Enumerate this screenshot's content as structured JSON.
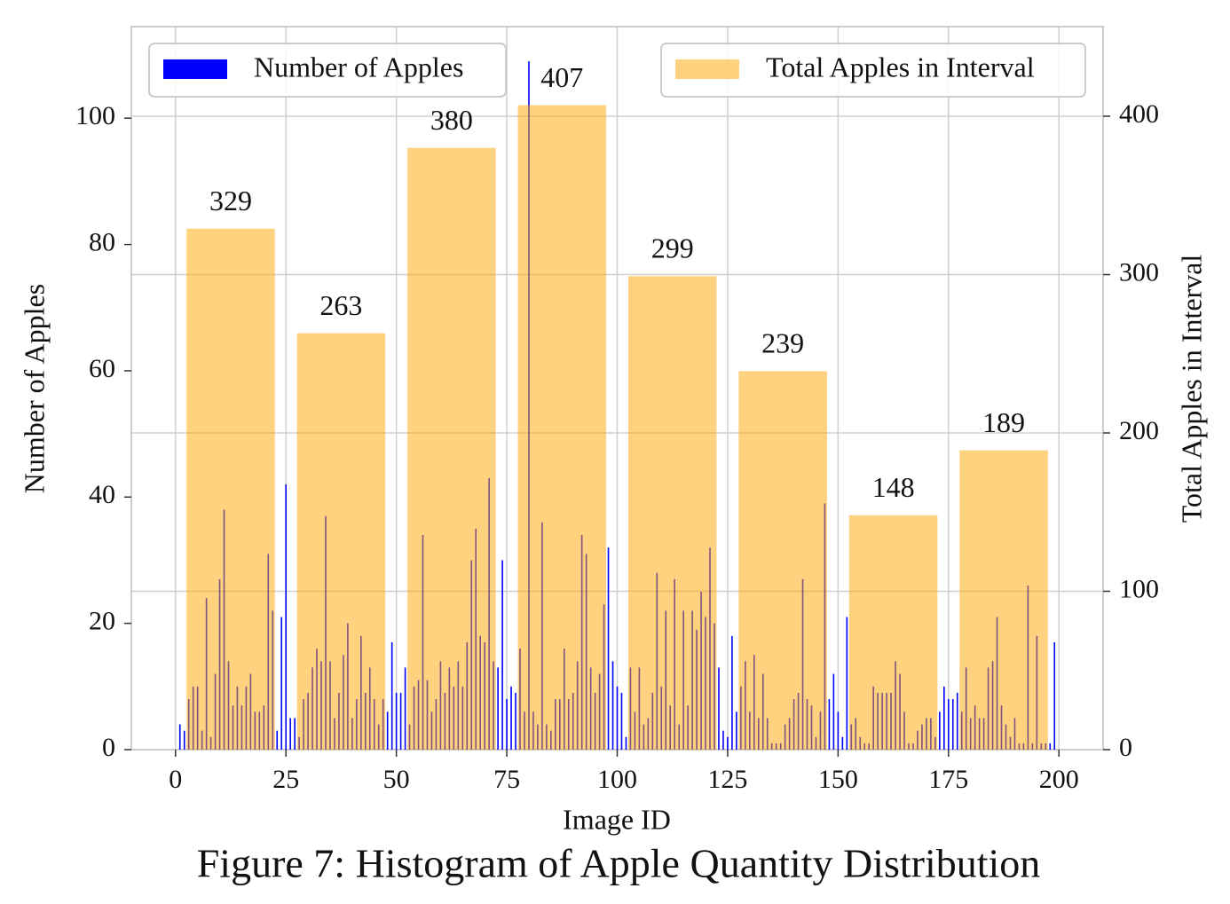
{
  "chart_data": {
    "type": "bar",
    "xlabel": "Image ID",
    "ylabel": "Number of Apples",
    "y2label": "Total Apples in Interval",
    "xlim": [
      -10,
      210
    ],
    "ylim": [
      0,
      114.5
    ],
    "y2lim": [
      0,
      456.6
    ],
    "xticks": [
      0,
      25,
      50,
      75,
      100,
      125,
      150,
      175,
      200
    ],
    "yticks": [
      0,
      20,
      40,
      60,
      80,
      100
    ],
    "y2ticks": [
      0,
      100,
      200,
      300,
      400
    ],
    "grid": true,
    "series": [
      {
        "name": "Number of Apples",
        "color": "#0000ff",
        "legend": "upper left",
        "x": [
          1,
          2,
          3,
          4,
          5,
          6,
          7,
          8,
          9,
          10,
          11,
          12,
          13,
          14,
          15,
          16,
          17,
          18,
          19,
          20,
          21,
          22,
          23,
          24,
          25,
          26,
          27,
          28,
          29,
          30,
          31,
          32,
          33,
          34,
          35,
          36,
          37,
          38,
          39,
          40,
          41,
          42,
          43,
          44,
          45,
          46,
          47,
          48,
          49,
          50,
          51,
          52,
          53,
          54,
          55,
          56,
          57,
          58,
          59,
          60,
          61,
          62,
          63,
          64,
          65,
          66,
          67,
          68,
          69,
          70,
          71,
          72,
          73,
          74,
          75,
          76,
          77,
          78,
          79,
          80,
          81,
          82,
          83,
          84,
          85,
          86,
          87,
          88,
          89,
          90,
          91,
          92,
          93,
          94,
          95,
          96,
          97,
          98,
          99,
          100,
          101,
          102,
          103,
          104,
          105,
          106,
          107,
          108,
          109,
          110,
          111,
          112,
          113,
          114,
          115,
          116,
          117,
          118,
          119,
          120,
          121,
          122,
          123,
          124,
          125,
          126,
          127,
          128,
          129,
          130,
          131,
          132,
          133,
          134,
          135,
          136,
          137,
          138,
          139,
          140,
          141,
          142,
          143,
          144,
          145,
          146,
          147,
          148,
          149,
          150,
          151,
          152,
          153,
          154,
          155,
          156,
          157,
          158,
          159,
          160,
          161,
          162,
          163,
          164,
          165,
          166,
          167,
          168,
          169,
          170,
          171,
          172,
          173,
          174,
          175,
          176,
          177,
          178,
          179,
          180,
          181,
          182,
          183,
          184,
          185,
          186,
          187,
          188,
          189,
          190,
          191,
          192,
          193,
          194,
          195,
          196,
          197,
          198,
          199
        ],
        "values": [
          4,
          3,
          8,
          10,
          10,
          3,
          24,
          2,
          12,
          27,
          38,
          14,
          7,
          10,
          7,
          10,
          12,
          6,
          6,
          7,
          31,
          22,
          3,
          21,
          42,
          5,
          5,
          2,
          8,
          9,
          13,
          16,
          14,
          37,
          14,
          5,
          9,
          15,
          20,
          5,
          8,
          18,
          9,
          13,
          8,
          4,
          8,
          6,
          17,
          9,
          9,
          13,
          4,
          10,
          11,
          34,
          11,
          6,
          8,
          14,
          9,
          13,
          10,
          14,
          10,
          17,
          30,
          35,
          18,
          17,
          43,
          14,
          13,
          30,
          8,
          10,
          9,
          16,
          6,
          109,
          6,
          4,
          36,
          4,
          3,
          8,
          8,
          16,
          8,
          9,
          14,
          34,
          31,
          13,
          9,
          12,
          23,
          32,
          14,
          10,
          9,
          2,
          13,
          6,
          13,
          4,
          5,
          9,
          28,
          10,
          22,
          7,
          27,
          4,
          22,
          7,
          22,
          19,
          25,
          21,
          32,
          20,
          13,
          3,
          2,
          18,
          6,
          10,
          14,
          6,
          15,
          5,
          12,
          5,
          1,
          1,
          1,
          4,
          5,
          8,
          9,
          27,
          8,
          7,
          2,
          6,
          39,
          8,
          12,
          6,
          2,
          21,
          4,
          5,
          2,
          1,
          1,
          10,
          9,
          9,
          9,
          9,
          14,
          12,
          6,
          1,
          1,
          3,
          4,
          5,
          5,
          2,
          6,
          10,
          8,
          8,
          9,
          6,
          13,
          5,
          7,
          5,
          5,
          13,
          14,
          21,
          7,
          4,
          2,
          5,
          1,
          1,
          26,
          1,
          18,
          1,
          1,
          1,
          17
        ]
      },
      {
        "name": "Total Apples in Interval",
        "color": "#ffa500",
        "axis": "y2",
        "legend": "upper right",
        "bins": [
          0,
          25,
          50,
          75,
          100,
          125,
          150,
          175,
          200
        ],
        "values": [
          329,
          263,
          380,
          407,
          299,
          239,
          148,
          189
        ]
      }
    ]
  },
  "caption": "Figure 7: Histogram of Apple Quantity Distribution"
}
